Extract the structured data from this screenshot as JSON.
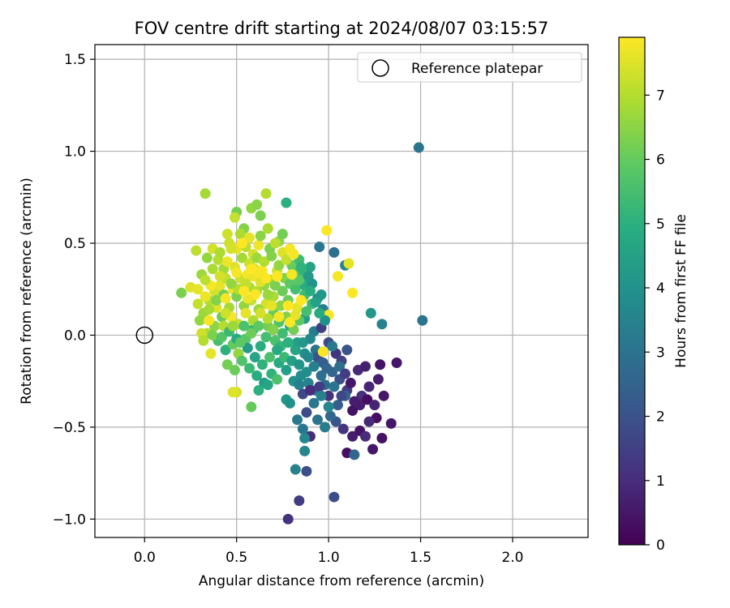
{
  "chart_data": {
    "type": "scatter",
    "title": "FOV centre drift starting at 2024/08/07 03:15:57",
    "xlabel": "Angular distance from reference (arcmin)",
    "ylabel": "Rotation from reference (arcmin)",
    "xlim": [
      -0.27,
      2.41
    ],
    "ylim": [
      -1.1,
      1.58
    ],
    "x_ticks": [
      0.0,
      0.5,
      1.0,
      1.5,
      2.0
    ],
    "x_tick_labels": [
      "0.0",
      "0.5",
      "1.0",
      "1.5",
      "2.0"
    ],
    "y_ticks": [
      -1.0,
      -0.5,
      0.0,
      0.5,
      1.0,
      1.5
    ],
    "y_tick_labels": [
      "−1.0",
      "−0.5",
      "0.0",
      "0.5",
      "1.0",
      "1.5"
    ],
    "grid": true,
    "colormap": "viridis",
    "colorbar": {
      "label": "Hours from first FF file",
      "range": [
        0,
        7.9
      ],
      "ticks": [
        0,
        1,
        2,
        3,
        4,
        5,
        6,
        7
      ],
      "tick_labels": [
        "0",
        "1",
        "2",
        "3",
        "4",
        "5",
        "6",
        "7"
      ]
    },
    "legend": {
      "position": "top-right",
      "entries": [
        {
          "label": "Reference platepar",
          "marker": "open-circle"
        }
      ]
    },
    "reference_point": {
      "label": "Reference platepar",
      "x": 0.0,
      "y": 0.0
    },
    "points": [
      [
        0.33,
        0.77,
        6.8
      ],
      [
        0.5,
        0.67,
        6.2
      ],
      [
        0.58,
        0.69,
        6.6
      ],
      [
        0.61,
        0.71,
        6.5
      ],
      [
        0.66,
        0.77,
        7.0
      ],
      [
        0.63,
        0.65,
        6.3
      ],
      [
        0.77,
        0.72,
        5.0
      ],
      [
        0.54,
        0.58,
        6.4
      ],
      [
        0.49,
        0.64,
        7.2
      ],
      [
        0.45,
        0.55,
        7.3
      ],
      [
        0.52,
        0.55,
        6.9
      ],
      [
        0.28,
        0.46,
        7.1
      ],
      [
        0.34,
        0.42,
        6.6
      ],
      [
        0.37,
        0.47,
        7.4
      ],
      [
        0.31,
        0.33,
        6.7
      ],
      [
        0.4,
        0.41,
        7.0
      ],
      [
        0.43,
        0.36,
        6.8
      ],
      [
        0.46,
        0.5,
        7.3
      ],
      [
        0.5,
        0.47,
        7.6
      ],
      [
        0.55,
        0.48,
        7.1
      ],
      [
        0.59,
        0.44,
        7.4
      ],
      [
        0.62,
        0.49,
        7.7
      ],
      [
        0.68,
        0.47,
        6.3
      ],
      [
        0.73,
        0.51,
        6.5
      ],
      [
        0.75,
        0.45,
        7.5
      ],
      [
        0.79,
        0.47,
        7.8
      ],
      [
        0.8,
        0.38,
        6.1
      ],
      [
        0.84,
        0.41,
        5.4
      ],
      [
        0.86,
        0.33,
        5.2
      ],
      [
        0.9,
        0.37,
        4.6
      ],
      [
        0.95,
        0.48,
        3.1
      ],
      [
        1.03,
        0.45,
        2.9
      ],
      [
        1.09,
        0.38,
        3.5
      ],
      [
        1.11,
        0.39,
        7.6
      ],
      [
        1.05,
        0.32,
        7.8
      ],
      [
        0.99,
        0.57,
        7.9
      ],
      [
        1.13,
        0.23,
        7.9
      ],
      [
        1.23,
        0.12,
        4.2
      ],
      [
        1.29,
        0.06,
        3.5
      ],
      [
        1.49,
        1.02,
        3.0
      ],
      [
        1.51,
        0.08,
        3.0
      ],
      [
        0.2,
        0.23,
        6.3
      ],
      [
        0.25,
        0.26,
        7.5
      ],
      [
        0.29,
        0.17,
        7.2
      ],
      [
        0.32,
        0.12,
        6.7
      ],
      [
        0.35,
        0.19,
        7.0
      ],
      [
        0.38,
        0.24,
        7.4
      ],
      [
        0.41,
        0.27,
        7.6
      ],
      [
        0.44,
        0.31,
        7.2
      ],
      [
        0.48,
        0.25,
        7.7
      ],
      [
        0.52,
        0.31,
        7.3
      ],
      [
        0.56,
        0.33,
        7.8
      ],
      [
        0.6,
        0.36,
        7.5
      ],
      [
        0.64,
        0.35,
        7.9
      ],
      [
        0.57,
        0.26,
        6.9
      ],
      [
        0.61,
        0.24,
        7.1
      ],
      [
        0.65,
        0.27,
        6.6
      ],
      [
        0.69,
        0.3,
        6.8
      ],
      [
        0.72,
        0.35,
        7.3
      ],
      [
        0.76,
        0.31,
        6.4
      ],
      [
        0.79,
        0.28,
        5.9
      ],
      [
        0.82,
        0.25,
        5.5
      ],
      [
        0.87,
        0.27,
        4.9
      ],
      [
        0.91,
        0.28,
        4.1
      ],
      [
        0.94,
        0.2,
        3.7
      ],
      [
        0.97,
        0.14,
        3.3
      ],
      [
        1.0,
        0.11,
        7.8
      ],
      [
        0.92,
        0.02,
        3.3
      ],
      [
        0.87,
        0.09,
        4.3
      ],
      [
        0.83,
        0.15,
        7.6
      ],
      [
        0.86,
        0.2,
        7.5
      ],
      [
        0.78,
        0.19,
        6.1
      ],
      [
        0.74,
        0.16,
        6.5
      ],
      [
        0.7,
        0.21,
        6.9
      ],
      [
        0.66,
        0.17,
        7.4
      ],
      [
        0.62,
        0.14,
        6.7
      ],
      [
        0.58,
        0.19,
        7.2
      ],
      [
        0.54,
        0.16,
        6.6
      ],
      [
        0.5,
        0.21,
        6.3
      ],
      [
        0.46,
        0.15,
        6.8
      ],
      [
        0.42,
        0.1,
        6.1
      ],
      [
        0.38,
        0.05,
        6.5
      ],
      [
        0.34,
        0.01,
        6.9
      ],
      [
        0.31,
        0.01,
        7.3
      ],
      [
        0.36,
        -0.1,
        7.6
      ],
      [
        0.4,
        -0.03,
        5.5
      ],
      [
        0.44,
        -0.08,
        5.0
      ],
      [
        0.48,
        -0.05,
        6.0
      ],
      [
        0.51,
        -0.1,
        6.6
      ],
      [
        0.55,
        -0.02,
        5.8
      ],
      [
        0.59,
        0.03,
        5.2
      ],
      [
        0.63,
        -0.06,
        4.9
      ],
      [
        0.67,
        0.05,
        6.2
      ],
      [
        0.71,
        -0.03,
        5.6
      ],
      [
        0.75,
        0.01,
        5.4
      ],
      [
        0.79,
        0.05,
        4.7
      ],
      [
        0.83,
        -0.04,
        4.4
      ],
      [
        0.87,
        -0.1,
        3.9
      ],
      [
        0.9,
        -0.02,
        3.6
      ],
      [
        0.93,
        -0.08,
        3.1
      ],
      [
        0.96,
        0.04,
        1.5
      ],
      [
        1.0,
        -0.04,
        1.8
      ],
      [
        1.04,
        -0.1,
        1.2
      ],
      [
        1.07,
        -0.14,
        1.6
      ],
      [
        1.1,
        -0.08,
        2.1
      ],
      [
        1.16,
        -0.19,
        0.9
      ],
      [
        1.2,
        -0.17,
        0.7
      ],
      [
        1.28,
        -0.16,
        0.4
      ],
      [
        1.37,
        -0.15,
        0.5
      ],
      [
        1.27,
        -0.24,
        0.6
      ],
      [
        1.22,
        -0.28,
        0.8
      ],
      [
        1.18,
        -0.33,
        1.1
      ],
      [
        1.14,
        -0.36,
        0.6
      ],
      [
        1.1,
        -0.3,
        1.4
      ],
      [
        1.06,
        -0.24,
        1.9
      ],
      [
        1.02,
        -0.2,
        2.6
      ],
      [
        0.98,
        -0.27,
        2.8
      ],
      [
        0.93,
        -0.3,
        3.2
      ],
      [
        0.89,
        -0.26,
        3.5
      ],
      [
        0.85,
        -0.22,
        3.8
      ],
      [
        0.81,
        -0.25,
        4.0
      ],
      [
        0.77,
        -0.19,
        4.4
      ],
      [
        0.73,
        -0.15,
        4.8
      ],
      [
        0.69,
        -0.21,
        5.1
      ],
      [
        0.65,
        -0.26,
        4.3
      ],
      [
        0.61,
        -0.22,
        4.9
      ],
      [
        0.57,
        -0.18,
        5.3
      ],
      [
        0.53,
        -0.14,
        5.7
      ],
      [
        0.49,
        -0.19,
        6.1
      ],
      [
        0.45,
        -0.16,
        6.2
      ],
      [
        0.5,
        -0.31,
        7.4
      ],
      [
        0.58,
        -0.39,
        6.0
      ],
      [
        0.62,
        -0.3,
        5.0
      ],
      [
        0.67,
        -0.27,
        4.7
      ],
      [
        0.72,
        -0.24,
        5.6
      ],
      [
        0.77,
        -0.35,
        4.2
      ],
      [
        0.79,
        -0.37,
        4.0
      ],
      [
        0.84,
        -0.27,
        3.4
      ],
      [
        0.86,
        -0.32,
        1.7
      ],
      [
        0.9,
        -0.3,
        1.0
      ],
      [
        0.95,
        -0.28,
        1.4
      ],
      [
        1.0,
        -0.33,
        1.1
      ],
      [
        1.05,
        -0.38,
        2.3
      ],
      [
        1.09,
        -0.33,
        2.6
      ],
      [
        1.13,
        -0.41,
        0.4
      ],
      [
        1.17,
        -0.38,
        0.6
      ],
      [
        1.21,
        -0.35,
        0.3
      ],
      [
        1.25,
        -0.38,
        0.8
      ],
      [
        1.3,
        -0.33,
        0.5
      ],
      [
        1.26,
        -0.45,
        0.3
      ],
      [
        1.22,
        -0.47,
        0.9
      ],
      [
        1.17,
        -0.52,
        0.4
      ],
      [
        1.13,
        -0.55,
        0.6
      ],
      [
        1.08,
        -0.51,
        1.2
      ],
      [
        1.04,
        -0.47,
        2.1
      ],
      [
        1.01,
        -0.44,
        2.7
      ],
      [
        0.98,
        -0.5,
        3.3
      ],
      [
        0.94,
        -0.46,
        3.0
      ],
      [
        0.9,
        -0.55,
        1.0
      ],
      [
        0.86,
        -0.51,
        3.1
      ],
      [
        0.83,
        -0.46,
        3.2
      ],
      [
        0.87,
        -0.56,
        3.7
      ],
      [
        0.87,
        -0.63,
        3.6
      ],
      [
        0.82,
        -0.73,
        3.5
      ],
      [
        0.88,
        -0.74,
        1.9
      ],
      [
        0.84,
        -0.9,
        1.4
      ],
      [
        0.78,
        -1.0,
        1.1
      ],
      [
        1.03,
        -0.88,
        1.9
      ],
      [
        1.1,
        -0.64,
        0.3
      ],
      [
        1.14,
        -0.65,
        2.6
      ],
      [
        1.2,
        -0.55,
        1.0
      ],
      [
        1.24,
        -0.62,
        0.5
      ],
      [
        1.29,
        -0.56,
        0.4
      ],
      [
        1.34,
        -0.48,
        0.5
      ],
      [
        0.94,
        -0.12,
        2.0
      ],
      [
        0.97,
        -0.15,
        2.4
      ],
      [
        1.02,
        -0.06,
        3.2
      ],
      [
        1.06,
        -0.17,
        2.8
      ],
      [
        1.09,
        -0.21,
        1.4
      ],
      [
        1.12,
        -0.26,
        0.5
      ],
      [
        0.98,
        0.08,
        4.0
      ],
      [
        0.95,
        0.12,
        4.8
      ],
      [
        0.91,
        0.17,
        5.3
      ],
      [
        0.88,
        0.13,
        5.5
      ],
      [
        0.84,
        0.08,
        5.9
      ],
      [
        0.81,
        0.03,
        6.2
      ],
      [
        0.77,
        0.1,
        6.4
      ],
      [
        0.73,
        0.07,
        5.7
      ],
      [
        0.7,
        0.12,
        6.0
      ],
      [
        0.67,
        0.09,
        7.0
      ],
      [
        0.63,
        0.12,
        7.4
      ],
      [
        0.59,
        0.08,
        6.9
      ],
      [
        0.55,
        0.12,
        7.6
      ],
      [
        0.51,
        0.06,
        7.2
      ],
      [
        0.47,
        0.1,
        7.8
      ],
      [
        0.43,
        0.05,
        7.0
      ],
      [
        0.39,
        0.15,
        7.5
      ],
      [
        0.36,
        0.27,
        7.8
      ],
      [
        0.33,
        0.3,
        7.1
      ],
      [
        0.37,
        0.36,
        6.9
      ],
      [
        0.41,
        0.32,
        7.4
      ],
      [
        0.45,
        0.4,
        7.7
      ],
      [
        0.49,
        0.37,
        7.5
      ],
      [
        0.53,
        0.42,
        6.8
      ],
      [
        0.57,
        0.39,
        7.3
      ],
      [
        0.61,
        0.42,
        6.7
      ],
      [
        0.65,
        0.4,
        7.0
      ],
      [
        0.69,
        0.43,
        6.4
      ],
      [
        0.73,
        0.38,
        6.6
      ],
      [
        0.77,
        0.41,
        7.2
      ],
      [
        0.81,
        0.35,
        6.0
      ],
      [
        0.84,
        0.3,
        5.8
      ],
      [
        0.87,
        0.22,
        5.4
      ],
      [
        0.9,
        0.24,
        4.9
      ],
      [
        0.93,
        0.18,
        4.5
      ],
      [
        0.96,
        0.22,
        4.2
      ],
      [
        0.89,
        0.32,
        4.3
      ],
      [
        0.85,
        0.37,
        5.1
      ],
      [
        0.75,
        0.24,
        6.1
      ],
      [
        0.71,
        0.27,
        6.3
      ],
      [
        0.67,
        0.22,
        6.7
      ],
      [
        0.63,
        0.29,
        7.5
      ],
      [
        0.59,
        0.32,
        7.7
      ],
      [
        0.55,
        0.28,
        7.2
      ],
      [
        0.51,
        0.25,
        7.0
      ],
      [
        0.47,
        0.28,
        6.6
      ],
      [
        0.43,
        0.22,
        6.2
      ],
      [
        0.39,
        0.19,
        6.4
      ],
      [
        0.35,
        0.14,
        6.8
      ],
      [
        0.3,
        0.08,
        6.6
      ],
      [
        0.32,
        -0.03,
        7.0
      ],
      [
        0.37,
        0.0,
        6.3
      ],
      [
        0.42,
        -0.01,
        5.7
      ],
      [
        0.46,
        0.02,
        5.3
      ],
      [
        0.5,
        -0.02,
        4.8
      ],
      [
        0.54,
        0.05,
        5.6
      ],
      [
        0.58,
        0.01,
        6.1
      ],
      [
        0.62,
        0.05,
        5.9
      ],
      [
        0.66,
        -0.01,
        5.5
      ],
      [
        0.7,
        0.03,
        6.4
      ],
      [
        0.74,
        -0.06,
        5.2
      ],
      [
        0.78,
        -0.04,
        5.0
      ],
      [
        0.82,
        -0.08,
        4.6
      ],
      [
        0.86,
        -0.04,
        4.2
      ],
      [
        0.89,
        -0.12,
        3.7
      ],
      [
        0.92,
        -0.17,
        3.4
      ],
      [
        0.96,
        -0.22,
        2.9
      ],
      [
        0.99,
        -0.18,
        2.6
      ],
      [
        1.03,
        -0.28,
        3.0
      ],
      [
        1.07,
        -0.33,
        1.7
      ],
      [
        1.0,
        -0.39,
        3.6
      ],
      [
        0.96,
        -0.33,
        3.4
      ],
      [
        0.92,
        -0.37,
        3.1
      ],
      [
        0.88,
        -0.42,
        1.8
      ],
      [
        0.6,
        -0.12,
        4.6
      ],
      [
        0.64,
        -0.16,
        5.1
      ],
      [
        0.68,
        -0.12,
        5.6
      ],
      [
        0.72,
        -0.08,
        4.8
      ],
      [
        0.76,
        -0.12,
        5.3
      ],
      [
        0.8,
        -0.14,
        4.5
      ],
      [
        0.84,
        -0.16,
        4.1
      ],
      [
        0.88,
        -0.2,
        3.9
      ],
      [
        0.56,
        -0.07,
        4.3
      ],
      [
        0.52,
        -0.04,
        5.9
      ],
      [
        0.48,
        0.05,
        6.7
      ],
      [
        0.44,
        0.12,
        7.3
      ],
      [
        0.63,
        0.54,
        6.5
      ],
      [
        0.67,
        0.58,
        6.9
      ],
      [
        0.71,
        0.5,
        7.1
      ],
      [
        0.75,
        0.55,
        6.2
      ],
      [
        0.57,
        0.53,
        7.6
      ],
      [
        0.53,
        0.5,
        7.9
      ],
      [
        0.47,
        0.47,
        7.4
      ],
      [
        0.41,
        0.45,
        6.9
      ],
      [
        0.78,
        0.16,
        7.9
      ],
      [
        0.82,
        0.11,
        7.6
      ],
      [
        0.73,
        0.1,
        7.8
      ],
      [
        0.69,
        0.16,
        7.6
      ],
      [
        0.6,
        0.22,
        7.9
      ],
      [
        0.56,
        0.2,
        7.7
      ],
      [
        0.66,
        0.31,
        7.9
      ],
      [
        0.62,
        0.34,
        7.8
      ],
      [
        0.58,
        0.36,
        7.9
      ],
      [
        0.35,
        0.08,
        7.8
      ],
      [
        0.33,
        0.21,
        7.7
      ],
      [
        0.29,
        0.25,
        7.6
      ],
      [
        0.97,
        -0.09,
        7.9
      ],
      [
        0.79,
        0.07,
        7.9
      ],
      [
        0.85,
        0.19,
        7.9
      ],
      [
        0.54,
        0.24,
        7.9
      ],
      [
        0.44,
        0.2,
        7.8
      ],
      [
        0.5,
        0.34,
        7.8
      ],
      [
        0.72,
        0.32,
        7.9
      ],
      [
        0.8,
        0.33,
        7.8
      ],
      [
        0.81,
        0.44,
        7.8
      ],
      [
        0.48,
        -0.31,
        7.5
      ]
    ]
  }
}
